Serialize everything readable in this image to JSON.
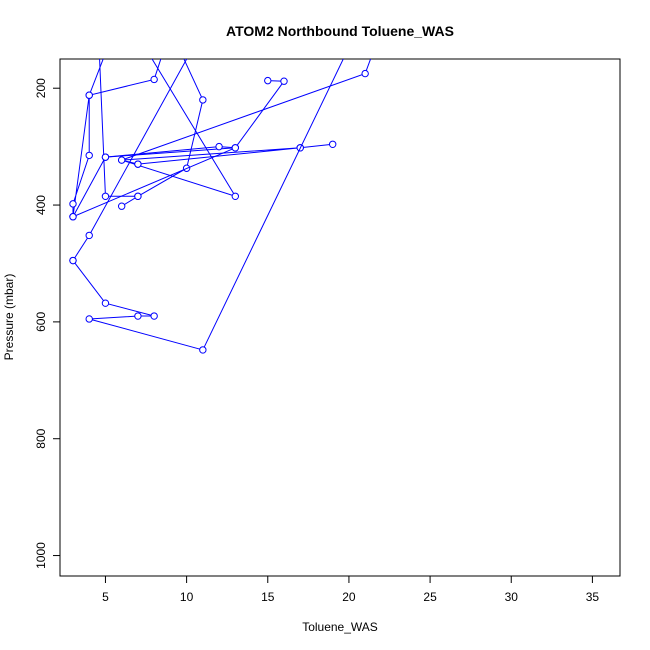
{
  "chart_data": {
    "type": "line",
    "title": "ATOM2 Northbound Toluene_WAS",
    "xlabel": "Toluene_WAS",
    "ylabel": "Pressure (mbar)",
    "xlim": [
      2.2,
      36.7
    ],
    "ylim": [
      1035,
      150
    ],
    "y_reversed": true,
    "x_ticks": [
      5,
      10,
      15,
      20,
      25,
      30,
      35
    ],
    "y_ticks": [
      200,
      400,
      600,
      800,
      1000
    ],
    "grid": false,
    "legend": "none",
    "series_color": "#0000ff",
    "series": [
      {
        "x": [
          4.5,
          5,
          7,
          6,
          7,
          10,
          11,
          9
        ],
        "y": [
          60,
          385,
          385,
          402,
          385,
          337,
          220,
          100
        ]
      },
      {
        "x": [
          5,
          13,
          16,
          15
        ],
        "y": [
          318,
          302,
          188,
          187
        ]
      },
      {
        "x": [
          5,
          4,
          4,
          3,
          3,
          13,
          12,
          5,
          3,
          4,
          8,
          9
        ],
        "y": [
          140,
          212,
          315,
          398,
          420,
          302,
          300,
          318,
          420,
          212,
          185,
          100
        ]
      },
      {
        "x": [
          7,
          13,
          6,
          7,
          7,
          17,
          19,
          17,
          6,
          21,
          22
        ],
        "y": [
          110,
          385,
          323,
          330,
          330,
          302,
          296,
          302,
          323,
          175,
          100
        ]
      },
      {
        "x": [
          11,
          4,
          3,
          3,
          5,
          8,
          7,
          4,
          11,
          20
        ],
        "y": [
          100,
          452,
          495,
          495,
          568,
          590,
          590,
          595,
          648,
          130
        ]
      }
    ]
  }
}
